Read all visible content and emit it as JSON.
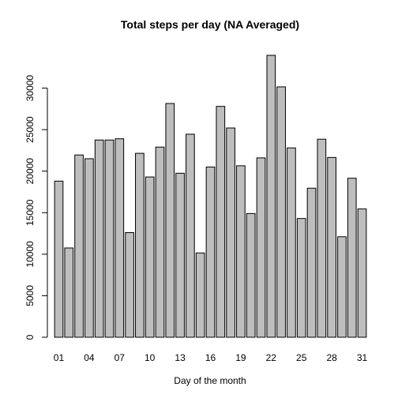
{
  "chart_data": {
    "type": "bar",
    "title": "Total steps per day  (NA Averaged)",
    "xlabel": "Day of the month",
    "ylabel": "",
    "categories": [
      "01",
      "02",
      "03",
      "04",
      "05",
      "06",
      "07",
      "08",
      "09",
      "10",
      "11",
      "12",
      "13",
      "14",
      "15",
      "16",
      "17",
      "18",
      "19",
      "20",
      "21",
      "22",
      "23",
      "24",
      "25",
      "26",
      "27",
      "28",
      "29",
      "30",
      "31"
    ],
    "x_tick_labels_shown": [
      "01",
      "04",
      "07",
      "10",
      "13",
      "16",
      "19",
      "22",
      "25",
      "28",
      "31"
    ],
    "values": [
      18800,
      10750,
      21950,
      21500,
      23750,
      23750,
      23900,
      12600,
      22150,
      19300,
      22900,
      28150,
      19750,
      24450,
      10150,
      20500,
      27800,
      25200,
      20650,
      14900,
      21600,
      33950,
      30150,
      22800,
      14300,
      17950,
      23850,
      21650,
      12100,
      19150,
      15450
    ],
    "ylim": [
      0,
      35000
    ],
    "y_ticks": [
      0,
      5000,
      10000,
      15000,
      20000,
      25000,
      30000
    ],
    "bar_color": "#bebebe",
    "grid": false,
    "legend": "none"
  }
}
